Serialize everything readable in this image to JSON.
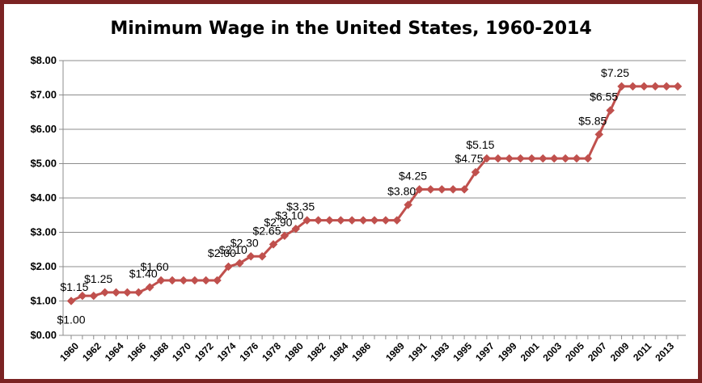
{
  "chart_data": {
    "type": "line",
    "title": "Minimum Wage in the United States, 1960-2014",
    "xlabel": "",
    "ylabel": "",
    "ylim": [
      0,
      8
    ],
    "y_ticks": [
      "$0.00",
      "$1.00",
      "$2.00",
      "$3.00",
      "$4.00",
      "$5.00",
      "$6.00",
      "$7.00",
      "$8.00"
    ],
    "x_tick_labels": [
      "1960",
      "1962",
      "1964",
      "1966",
      "1968",
      "1970",
      "1972",
      "1974",
      "1976",
      "1978",
      "1980",
      "1982",
      "1984",
      "1986",
      "1989",
      "1991",
      "1993",
      "1995",
      "1997",
      "1999",
      "2001",
      "2003",
      "2005",
      "2007",
      "2009",
      "2011",
      "2013"
    ],
    "grid": true,
    "line_color": "#c0504d",
    "x": [
      1960,
      1961,
      1962,
      1963,
      1964,
      1965,
      1966,
      1967,
      1968,
      1969,
      1970,
      1971,
      1972,
      1973,
      1974,
      1975,
      1976,
      1977,
      1978,
      1979,
      1980,
      1981,
      1982,
      1983,
      1984,
      1985,
      1986,
      1987,
      1988,
      1989,
      1990,
      1991,
      1992,
      1993,
      1994,
      1995,
      1996,
      1997,
      1998,
      1999,
      2000,
      2001,
      2002,
      2003,
      2004,
      2005,
      2006,
      2007,
      2008,
      2009,
      2010,
      2011,
      2012,
      2013,
      2014
    ],
    "values": [
      1.0,
      1.15,
      1.15,
      1.25,
      1.25,
      1.25,
      1.25,
      1.4,
      1.6,
      1.6,
      1.6,
      1.6,
      1.6,
      1.6,
      2.0,
      2.1,
      2.3,
      2.3,
      2.65,
      2.9,
      3.1,
      3.35,
      3.35,
      3.35,
      3.35,
      3.35,
      3.35,
      3.35,
      3.35,
      3.35,
      3.8,
      4.25,
      4.25,
      4.25,
      4.25,
      4.25,
      4.75,
      5.15,
      5.15,
      5.15,
      5.15,
      5.15,
      5.15,
      5.15,
      5.15,
      5.15,
      5.15,
      5.85,
      6.55,
      7.25,
      7.25,
      7.25,
      7.25,
      7.25,
      7.25
    ],
    "data_labels": [
      {
        "x": 1960,
        "text": "$1.00"
      },
      {
        "x": 1961,
        "text": "$1.15"
      },
      {
        "x": 1963,
        "text": "$1.25"
      },
      {
        "x": 1967,
        "text": "$1.40"
      },
      {
        "x": 1968,
        "text": "$1.60"
      },
      {
        "x": 1974,
        "text": "$2.00"
      },
      {
        "x": 1975,
        "text": "$2.10"
      },
      {
        "x": 1976,
        "text": "$2.30"
      },
      {
        "x": 1978,
        "text": "$2.65"
      },
      {
        "x": 1979,
        "text": "$2.90"
      },
      {
        "x": 1980,
        "text": "$3.10"
      },
      {
        "x": 1981,
        "text": "$3.35"
      },
      {
        "x": 1990,
        "text": "$3.80"
      },
      {
        "x": 1991,
        "text": "$4.25"
      },
      {
        "x": 1996,
        "text": "$4.75"
      },
      {
        "x": 1997,
        "text": "$5.15"
      },
      {
        "x": 2007,
        "text": "$5.85"
      },
      {
        "x": 2008,
        "text": "$6.55"
      },
      {
        "x": 2009,
        "text": "$7.25"
      }
    ]
  }
}
